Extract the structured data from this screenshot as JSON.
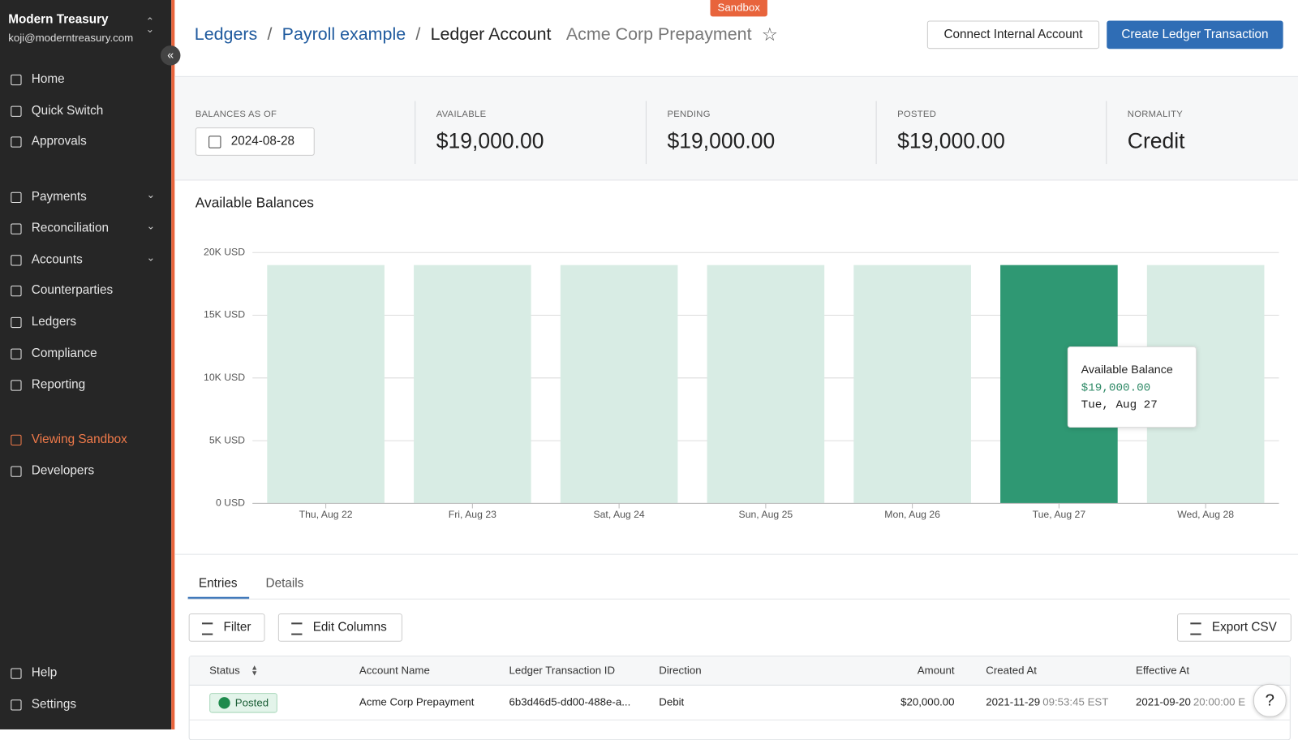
{
  "sidebar": {
    "org": "Modern Treasury",
    "email": "koji@moderntreasury.com",
    "nav": [
      "Home",
      "Quick Switch",
      "Approvals"
    ],
    "sections": [
      "Payments",
      "Reconciliation",
      "Accounts",
      "Counterparties",
      "Ledgers",
      "Compliance",
      "Reporting"
    ],
    "sandbox": "Viewing Sandbox",
    "developers": "Developers",
    "footer": [
      "Help",
      "Settings"
    ]
  },
  "header": {
    "badge": "Sandbox",
    "breadcrumbs": [
      "Ledgers",
      "Payroll example",
      "Ledger Account"
    ],
    "account": "Acme Corp Prepayment",
    "buttons": [
      "Connect Internal Account",
      "Create Ledger Transaction"
    ]
  },
  "balances": [
    {
      "label": "BALANCES AS OF",
      "value": "2024-08-28"
    },
    {
      "label": "AVAILABLE",
      "value": "$19,000.00"
    },
    {
      "label": "PENDING",
      "value": "$19,000.00"
    },
    {
      "label": "POSTED",
      "value": "$19,000.00"
    },
    {
      "label": "NORMALITY",
      "value": "Credit"
    }
  ],
  "chart_data": {
    "type": "bar",
    "title": "Available Balances",
    "categories": [
      "Thu, Aug 22",
      "Fri, Aug 23",
      "Sat, Aug 24",
      "Sun, Aug 25",
      "Mon, Aug 26",
      "Tue, Aug 27",
      "Wed, Aug 28"
    ],
    "values": [
      19000,
      19000,
      19000,
      19000,
      19000,
      19000,
      19000
    ],
    "colors": [
      "#d8ece4",
      "#d8ece4",
      "#d8ece4",
      "#d8ece4",
      "#d8ece4",
      "#2f9873",
      "#d8ece4"
    ],
    "ylim": [
      0,
      20000
    ],
    "yticks": [
      {
        "value": 0,
        "label": "0 USD"
      },
      {
        "value": 5000,
        "label": "5K USD"
      },
      {
        "value": 10000,
        "label": "10K USD"
      },
      {
        "value": 15000,
        "label": "15K USD"
      },
      {
        "value": 20000,
        "label": "20K USD"
      }
    ],
    "grid": true,
    "tooltip": {
      "title": "Available Balance",
      "value": "$19,000.00",
      "date": "Tue, Aug 27"
    }
  },
  "tabs": [
    "Entries",
    "Details"
  ],
  "toolbar": [
    "Filter",
    "Edit Columns",
    "Export CSV"
  ],
  "table": {
    "columns": [
      "Status",
      "Account Name",
      "Ledger Transaction ID",
      "Direction",
      "Amount",
      "Created At",
      "Effective At"
    ],
    "rows": [
      [
        "Posted",
        "Acme Corp Prepayment",
        "6b3d46d5-dd00-488e-a...",
        "Debit",
        "$20,000.00",
        {
          "date": "2021-11-29",
          "time": "09:53:45 EST"
        },
        {
          "date": "2021-09-20",
          "time": "20:00:00 E"
        }
      ]
    ]
  },
  "help_button": "?"
}
